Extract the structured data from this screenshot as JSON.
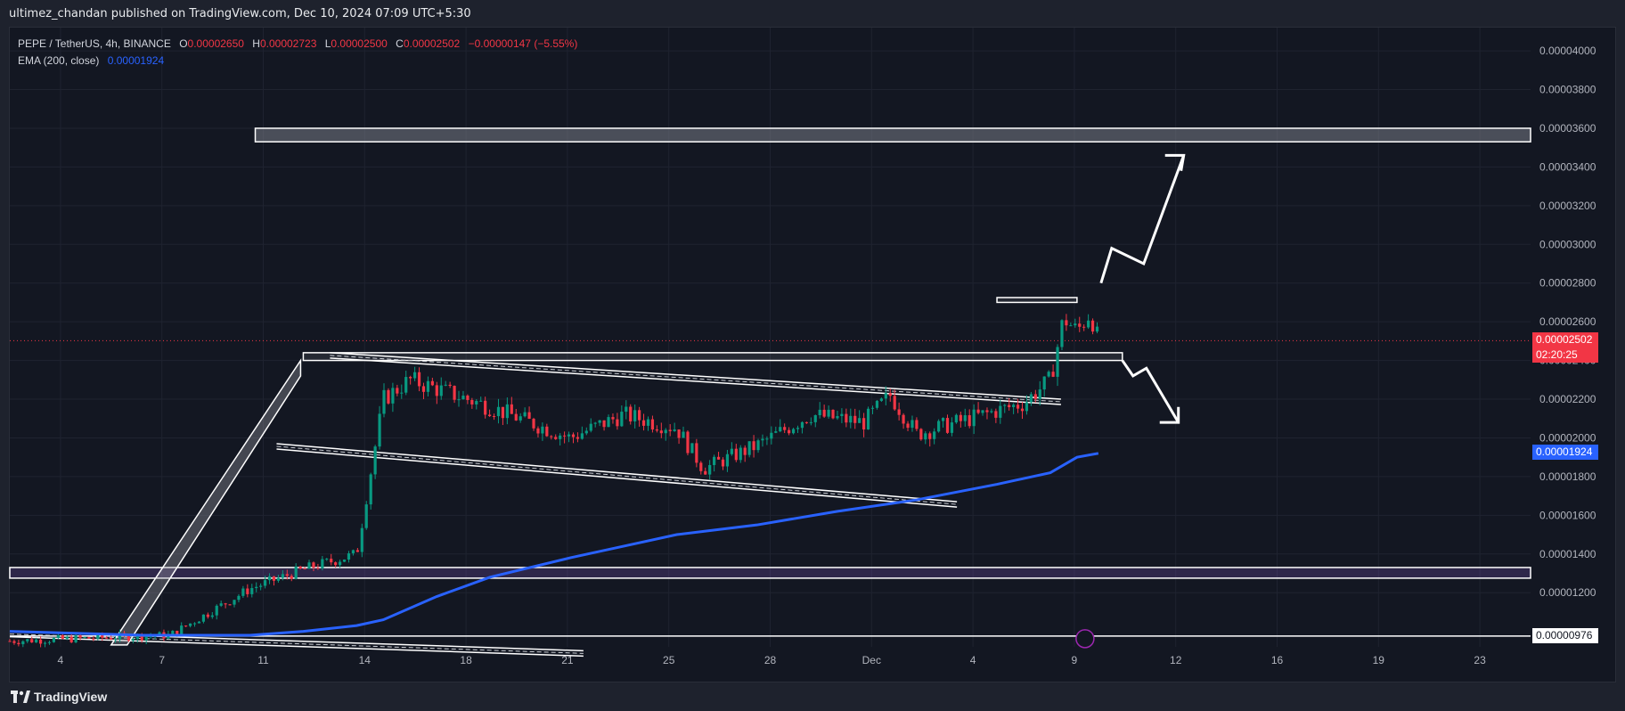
{
  "header": {
    "published": "ultimez_chandan published on TradingView.com, Dec 10, 2024 07:09 UTC+5:30"
  },
  "legend": {
    "symbol": "PEPE / TetherUS, 4h, BINANCE",
    "o_label": "O",
    "o_value": "0.00002650",
    "h_label": "H",
    "h_value": "0.00002723",
    "l_label": "L",
    "l_value": "0.00002500",
    "c_label": "C",
    "c_value": "0.00002502",
    "change": "−0.00000147 (−5.55%)",
    "ema_label": "EMA (200, close)",
    "ema_value": "0.00001924"
  },
  "footer": {
    "brand": "TradingView"
  },
  "colors": {
    "up": "#089981",
    "down": "#f23645",
    "ema": "#2962ff",
    "zone": "#ffffff"
  },
  "chart_data": {
    "type": "candlestick",
    "symbol": "PEPE / TetherUS",
    "timeframe": "4h",
    "exchange": "BINANCE",
    "x_ticks": [
      "4",
      "7",
      "11",
      "14",
      "18",
      "21",
      "25",
      "28",
      "Dec",
      "4",
      "9",
      "12",
      "16",
      "19",
      "23"
    ],
    "y_ticks": [
      "0.00004000",
      "0.00003800",
      "0.00003600",
      "0.00003400",
      "0.00003200",
      "0.00003000",
      "0.00002800",
      "0.00002600",
      "0.00002400",
      "0.00002200",
      "0.00002000",
      "0.00001800",
      "0.00001600",
      "0.00001400",
      "0.00001200"
    ],
    "ylim": [
      9.2e-06,
      4.12e-05
    ],
    "last_price": {
      "value": 2.502e-05,
      "label": "0.00002502",
      "countdown": "02:20:25"
    },
    "ema_tag": {
      "value": 1.924e-05,
      "label": "0.00001924"
    },
    "bottom_tag": {
      "value": 9.76e-06,
      "label": "0.00000976"
    },
    "zones": [
      {
        "from": 3.53e-05,
        "to": 3.6e-05
      },
      {
        "from": 2.4e-05,
        "to": 2.44e-05
      },
      {
        "from": 2.7e-05,
        "to": 2.725e-05
      },
      {
        "from": 1.275e-05,
        "to": 1.33e-05
      }
    ],
    "ema_path": [
      [
        0,
        1e-05
      ],
      [
        5,
        9.8e-06
      ],
      [
        9,
        9.8e-06
      ],
      [
        11,
        1e-05
      ],
      [
        13,
        1.03e-05
      ],
      [
        14,
        1.06e-05
      ],
      [
        16,
        1.18e-05
      ],
      [
        18,
        1.28e-05
      ],
      [
        21,
        1.38e-05
      ],
      [
        23,
        1.44e-05
      ],
      [
        25,
        1.5e-05
      ],
      [
        28,
        1.55e-05
      ],
      [
        31,
        1.62e-05
      ],
      [
        34,
        1.68e-05
      ],
      [
        37,
        1.76e-05
      ],
      [
        39,
        1.82e-05
      ],
      [
        40,
        1.9e-05
      ],
      [
        40.8,
        1.92e-05
      ]
    ],
    "candles_desc": "PEPE 4h candles from early Nov to Dec 10, 2024",
    "key_points": [
      [
        0,
        9.5e-06
      ],
      [
        6,
        9.8e-06
      ],
      [
        9,
        1.22e-05
      ],
      [
        11,
        1.32e-05
      ],
      [
        13,
        1.4e-05
      ],
      [
        14,
        2.2e-05
      ],
      [
        15,
        2.3e-05
      ],
      [
        18,
        2.16e-05
      ],
      [
        21,
        2e-05
      ],
      [
        23,
        2.12e-05
      ],
      [
        25,
        2.05e-05
      ],
      [
        26,
        1.84e-05
      ],
      [
        28,
        1.96e-05
      ],
      [
        30,
        2.12e-05
      ],
      [
        32,
        2.08e-05
      ],
      [
        33,
        2.22e-05
      ],
      [
        34,
        2.02e-05
      ],
      [
        36,
        2.1e-05
      ],
      [
        38,
        2.18e-05
      ],
      [
        39,
        2.3e-05
      ],
      [
        39.5,
        2.62e-05
      ],
      [
        40,
        2.55e-05
      ],
      [
        40.5,
        2.65e-05
      ],
      [
        40.8,
        2.5e-05
      ]
    ]
  }
}
